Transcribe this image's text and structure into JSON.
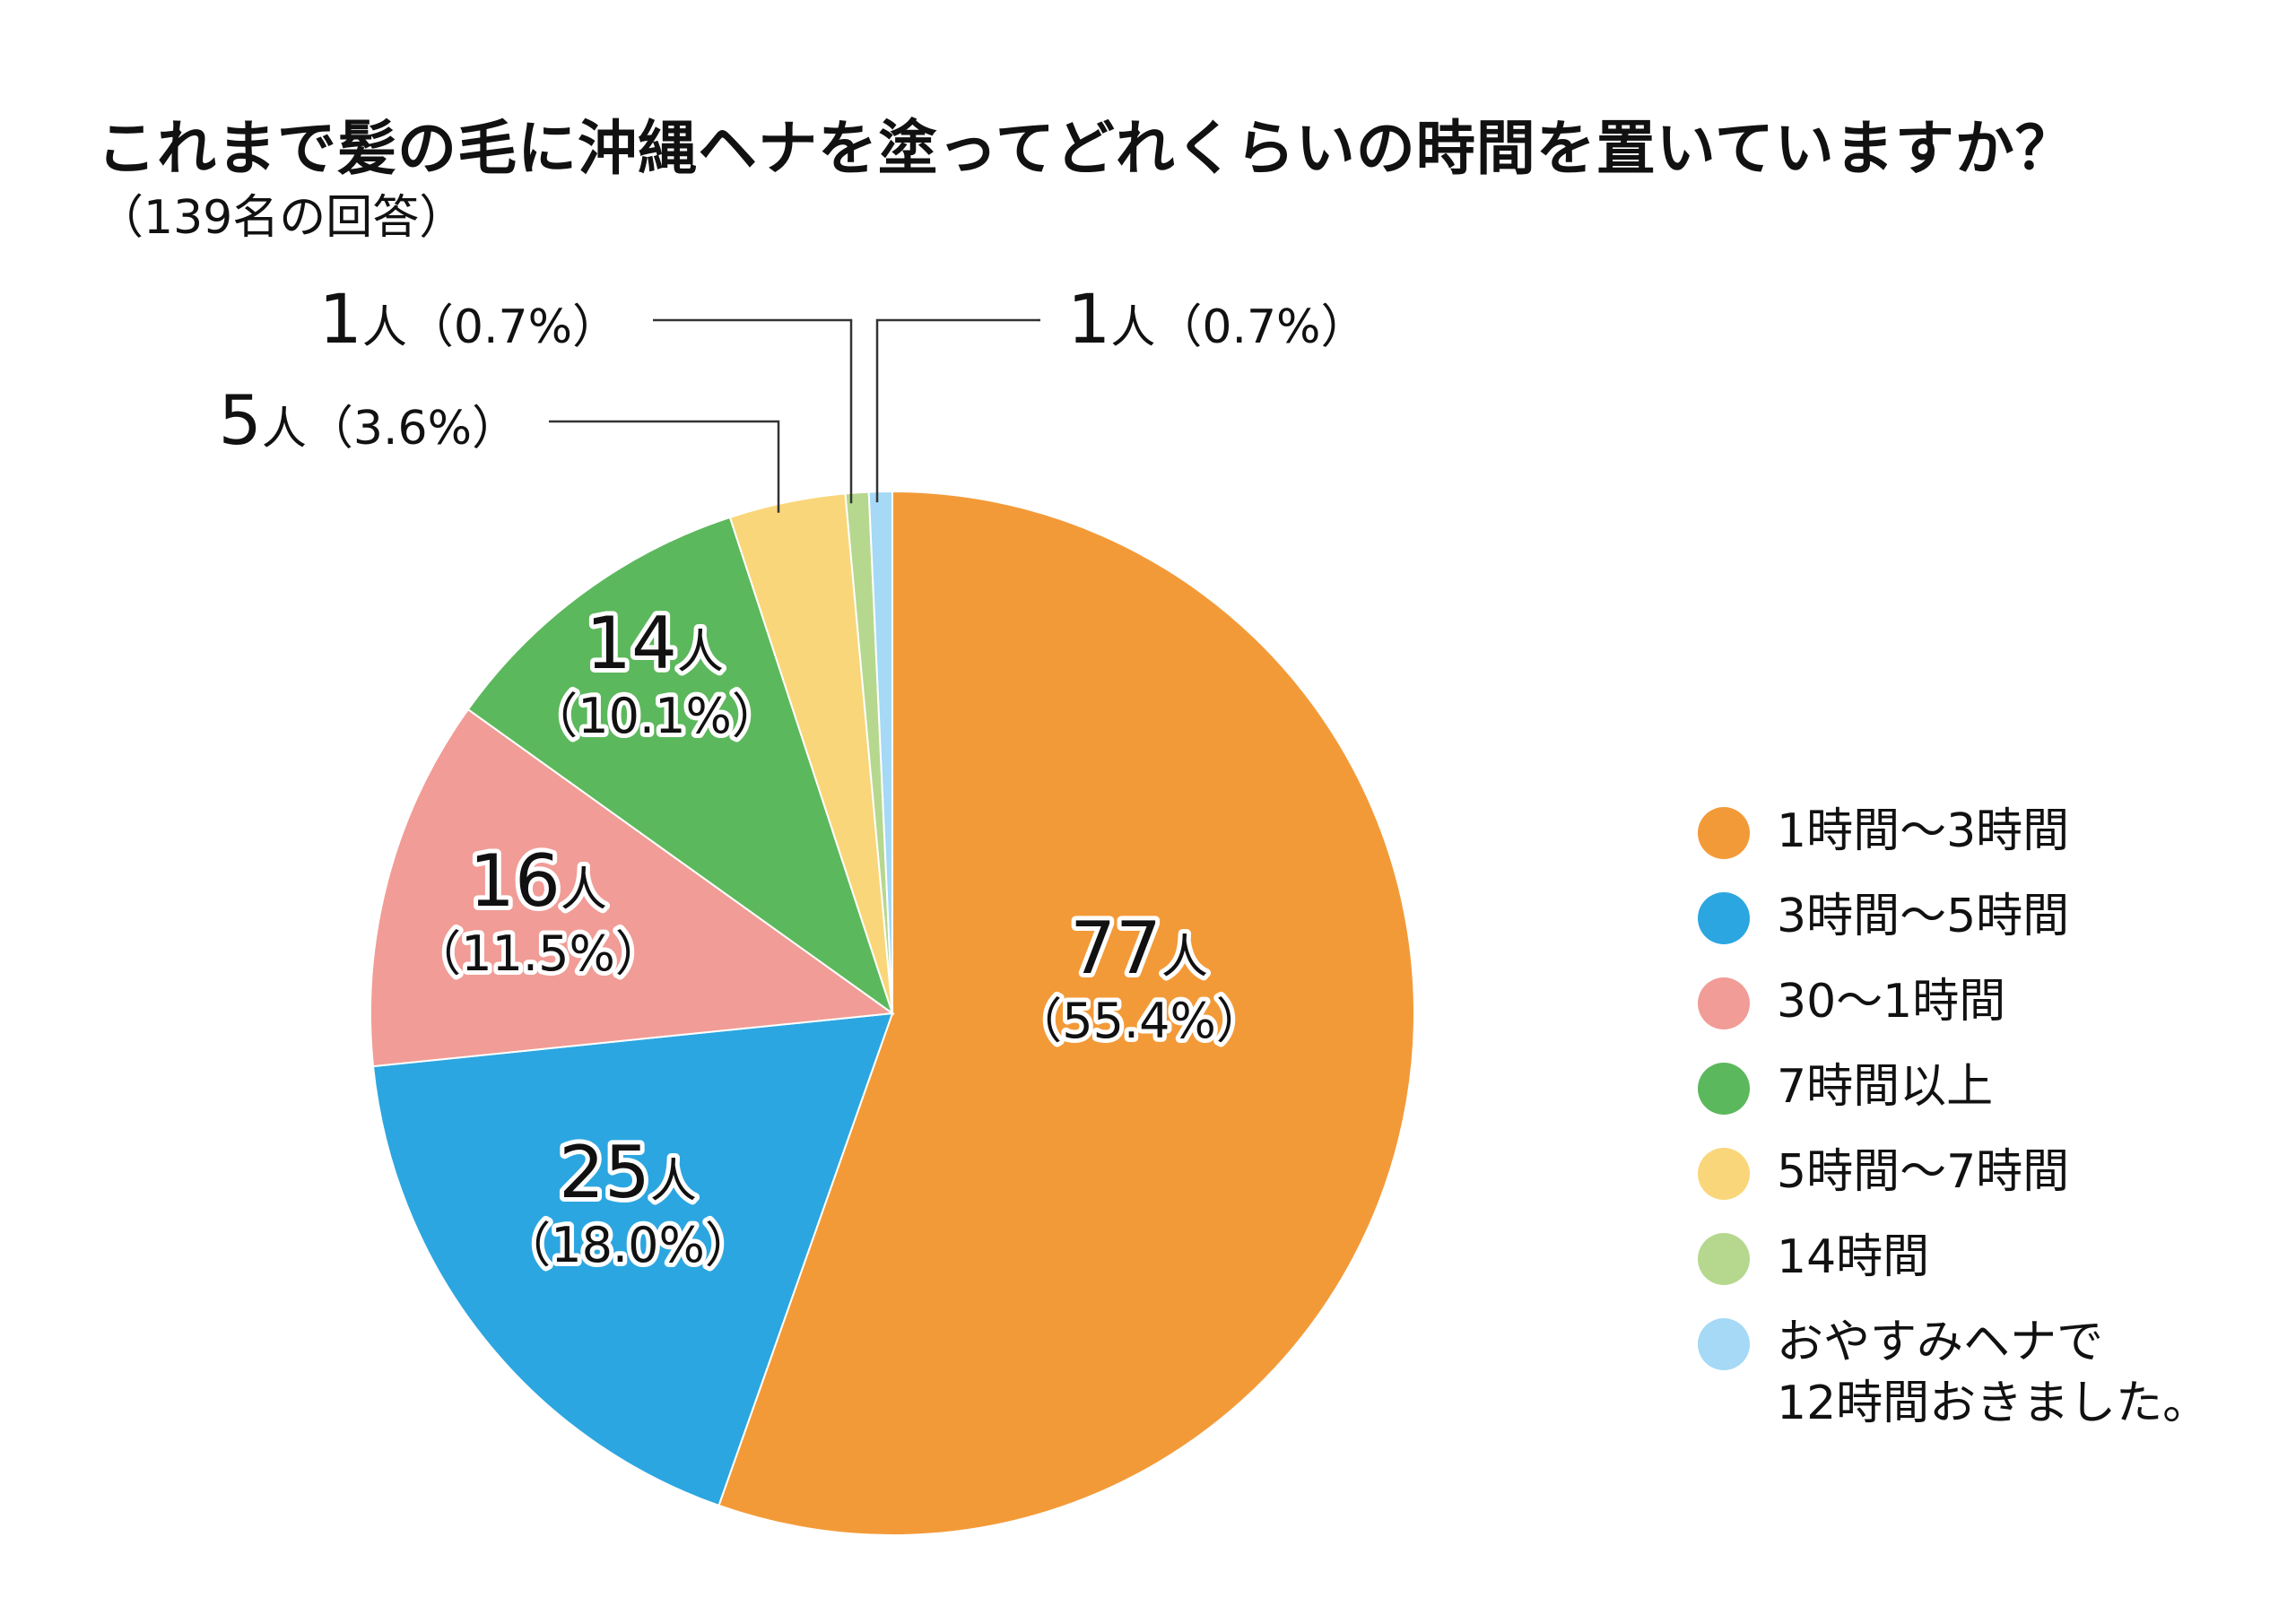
{
  "title": "これまで髪の毛に沖縄ヘナを塗ってどれくらいの時間を置いていますか？",
  "subtitle": "（139名の回答）",
  "chart_data": {
    "type": "pie",
    "title": "これまで髪の毛に沖縄ヘナを塗ってどれくらいの時間を置いていますか？",
    "subtitle": "（139名の回答）",
    "unit": "人",
    "total": 139,
    "slices": [
      {
        "label": "1時間〜3時間",
        "value": 77,
        "percent": 55.4,
        "count_text": "77",
        "percent_text": "（55.4%）",
        "color": "#f39a38"
      },
      {
        "label": "3時間〜5時間",
        "value": 25,
        "percent": 18.0,
        "count_text": "25",
        "percent_text": "（18.0%）",
        "color": "#2ca6e0"
      },
      {
        "label": "30〜1時間",
        "value": 16,
        "percent": 11.5,
        "count_text": "16",
        "percent_text": "（11.5%）",
        "color": "#f19c96"
      },
      {
        "label": "7時間以上",
        "value": 14,
        "percent": 10.1,
        "count_text": "14",
        "percent_text": "（10.1%）",
        "color": "#5cb85c"
      },
      {
        "label": "5時間〜7時間",
        "value": 5,
        "percent": 3.6,
        "count_text": "5",
        "percent_text": "（3.6%）",
        "color": "#fad67a"
      },
      {
        "label": "14時間",
        "value": 1,
        "percent": 0.7,
        "count_text": "1",
        "percent_text": "（0.7%）",
        "color": "#b5d88e"
      },
      {
        "label": "おやすみヘナで\n12時間おきました。",
        "value": 1,
        "percent": 0.7,
        "count_text": "1",
        "percent_text": "（0.7%）",
        "color": "#a5d9f5"
      }
    ],
    "legend_position": "right"
  }
}
